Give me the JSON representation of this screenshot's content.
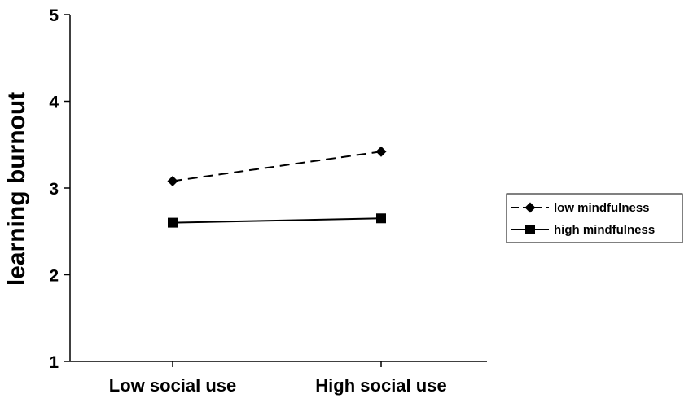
{
  "chart_data": {
    "type": "line",
    "categories": [
      "Low social use",
      "High social use"
    ],
    "series": [
      {
        "name": "low mindfulness",
        "values": [
          3.08,
          3.42
        ],
        "style": "dashed",
        "marker": "diamond",
        "color": "#000000"
      },
      {
        "name": "high mindfulness",
        "values": [
          2.6,
          2.65
        ],
        "style": "solid",
        "marker": "square",
        "color": "#000000"
      }
    ],
    "title": "",
    "xlabel": "",
    "ylabel": "learning burnout",
    "ylim": [
      1,
      5
    ],
    "yticks": [
      "1",
      "2",
      "3",
      "4",
      "5"
    ],
    "grid": false,
    "legend_position": "right"
  }
}
